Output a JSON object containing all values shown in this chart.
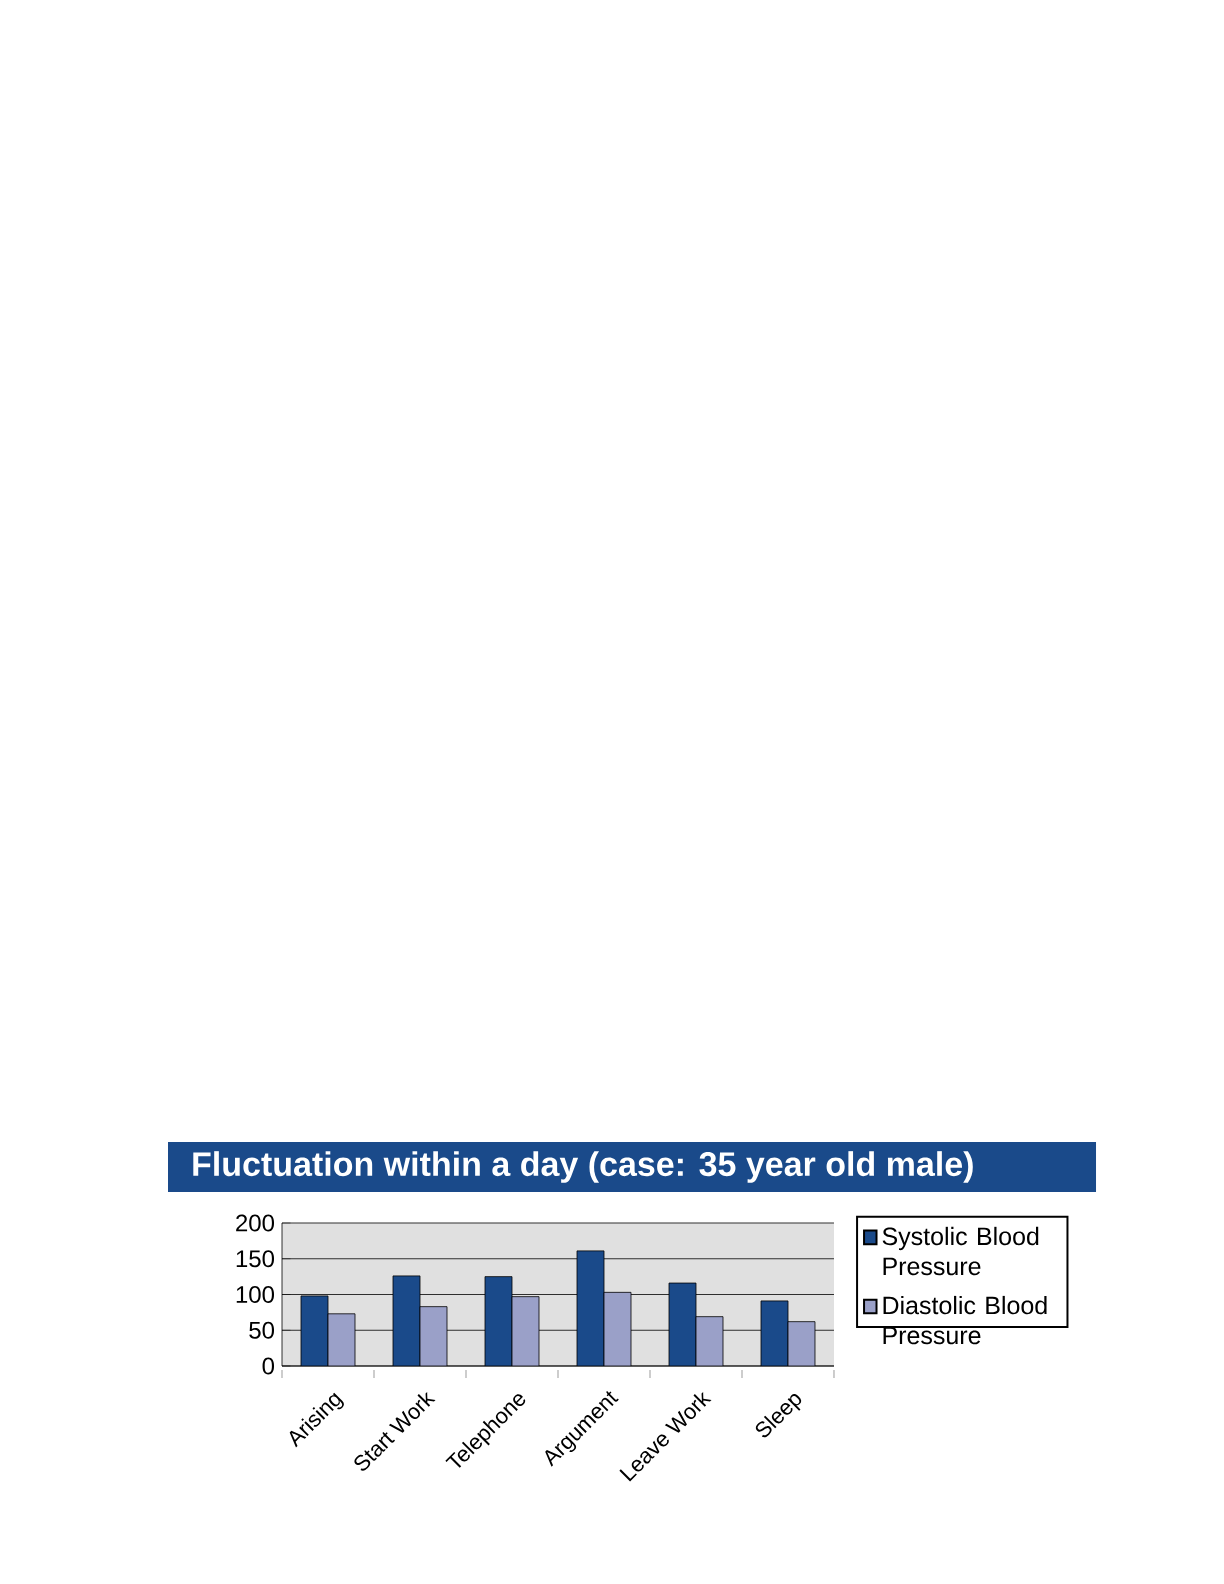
{
  "chart_data": {
    "type": "bar",
    "title": "Fluctuation within a day (case: 35 year old male)",
    "categories": [
      "Arising",
      "Start Work",
      "Telephone",
      "Argument",
      "Leave Work",
      "Sleep"
    ],
    "series": [
      {
        "name": "Systolic Blood Pressure",
        "color": "#1a4a8a",
        "values": [
          98,
          126,
          125,
          161,
          116,
          91
        ]
      },
      {
        "name": "Diastolic Blood Pressure",
        "color": "#9aa0c8",
        "values": [
          73,
          83,
          97,
          103,
          69,
          62
        ]
      }
    ],
    "ylim": [
      0,
      200
    ],
    "yticks": [
      0,
      50,
      100,
      150,
      200
    ],
    "grid": "y",
    "legend": "right"
  }
}
